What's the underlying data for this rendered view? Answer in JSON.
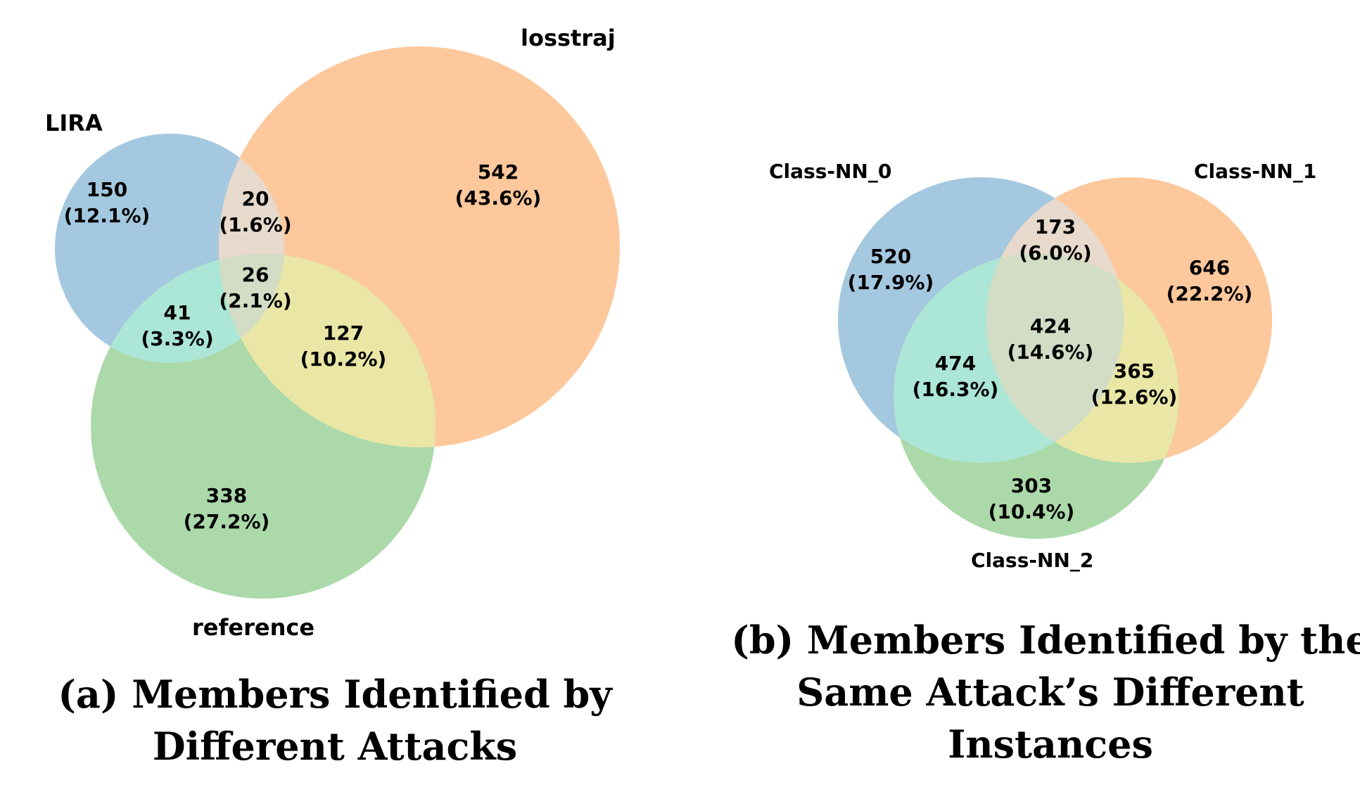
{
  "colors": {
    "blue": "#a4c8e0",
    "orange": "#fcc89c",
    "green": "#abd9a9",
    "blue_orange": "#e7d9cc",
    "blue_green": "#abe6d6",
    "orange_green": "#eae6a6",
    "all_three": "#d3ddc5"
  },
  "panel_a": {
    "sets": {
      "a": "LIRA",
      "b": "losstraj",
      "c": "reference"
    },
    "regions": {
      "a_only": {
        "count": "150",
        "pct": "(12.1%)"
      },
      "b_only": {
        "count": "542",
        "pct": "(43.6%)"
      },
      "c_only": {
        "count": "338",
        "pct": "(27.2%)"
      },
      "ab": {
        "count": "20",
        "pct": "(1.6%)"
      },
      "ac": {
        "count": "41",
        "pct": "(3.3%)"
      },
      "bc": {
        "count": "127",
        "pct": "(10.2%)"
      },
      "abc": {
        "count": "26",
        "pct": "(2.1%)"
      }
    },
    "caption": [
      "(a) Members Identified by",
      "Different Attacks"
    ]
  },
  "panel_b": {
    "sets": {
      "a": "Class-NN_0",
      "b": "Class-NN_1",
      "c": "Class-NN_2"
    },
    "regions": {
      "a_only": {
        "count": "520",
        "pct": "(17.9%)"
      },
      "b_only": {
        "count": "646",
        "pct": "(22.2%)"
      },
      "c_only": {
        "count": "303",
        "pct": "(10.4%)"
      },
      "ab": {
        "count": "173",
        "pct": "(6.0%)"
      },
      "ac": {
        "count": "474",
        "pct": "(16.3%)"
      },
      "bc": {
        "count": "365",
        "pct": "(12.6%)"
      },
      "abc": {
        "count": "424",
        "pct": "(14.6%)"
      }
    },
    "caption": [
      "(b) Members Identified by the",
      "Same Attack’s Different",
      "Instances"
    ]
  }
}
